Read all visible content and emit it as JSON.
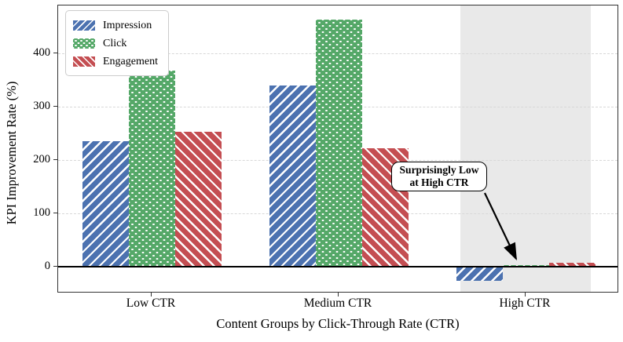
{
  "chart_data": {
    "type": "bar",
    "title": "",
    "xlabel": "Content Groups by Click-Through Rate (CTR)",
    "ylabel": "KPI Improvement Rate (%)",
    "categories": [
      "Low CTR",
      "Medium CTR",
      "High CTR"
    ],
    "series": [
      {
        "name": "Impression",
        "color": "#4C72B0",
        "hatch": "diagonal-forward",
        "values": [
          236,
          340,
          -26
        ]
      },
      {
        "name": "Click",
        "color": "#55A868",
        "hatch": "dots",
        "values": [
          368,
          463,
          3
        ]
      },
      {
        "name": "Engagement",
        "color": "#C44E52",
        "hatch": "diagonal-backward",
        "values": [
          253,
          222,
          8
        ]
      }
    ],
    "ylim": [
      -50,
      490
    ],
    "yticks": [
      0,
      100,
      200,
      300,
      400
    ],
    "grid": "horizontal-dashed",
    "legend_position": "upper-left",
    "zero_line": true,
    "highlight_span": {
      "category": "High CTR",
      "color": "#e9e9e9"
    }
  },
  "annotation": {
    "line1": "Surprisingly Low",
    "line2": "at High CTR"
  },
  "colors": {
    "spine": "#333333",
    "grid": "#d8d8d8",
    "zero_line": "#000000",
    "hatch": "#ffffff"
  }
}
